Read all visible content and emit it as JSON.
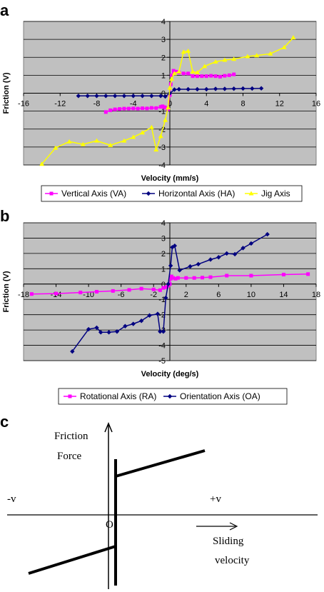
{
  "figure": {
    "panels": [
      {
        "label": "a"
      },
      {
        "label": "b"
      },
      {
        "label": "c"
      }
    ]
  },
  "chart_data": [
    {
      "type": "line",
      "panel": "a",
      "xlabel": "Velocity (mm/s)",
      "ylabel": "Friction (V)",
      "xlim": [
        -16,
        16
      ],
      "ylim": [
        -4,
        4
      ],
      "x_ticks": [
        "-16",
        "-12",
        "-8",
        "-4",
        "0",
        "4",
        "8",
        "12",
        "16"
      ],
      "x_tick_values": [
        -16,
        -12,
        -8,
        -4,
        0,
        4,
        8,
        12,
        16
      ],
      "y_ticks": [
        "4",
        "3",
        "2",
        "1",
        "0",
        "-1",
        "-2",
        "-3",
        "-4"
      ],
      "y_tick_values": [
        4,
        3,
        2,
        1,
        0,
        -1,
        -2,
        -3,
        -4
      ],
      "grid": true,
      "background": "#c0c0c0",
      "legend_position": "bottom",
      "series": [
        {
          "name": "Vertical Axis (VA)",
          "color": "#ff00ff",
          "marker": "square",
          "points": [
            [
              -7,
              -1.05
            ],
            [
              -6.5,
              -0.95
            ],
            [
              -6,
              -0.9
            ],
            [
              -5.5,
              -0.88
            ],
            [
              -5,
              -0.86
            ],
            [
              -4.5,
              -0.86
            ],
            [
              -4,
              -0.85
            ],
            [
              -3.5,
              -0.86
            ],
            [
              -3,
              -0.84
            ],
            [
              -2.5,
              -0.85
            ],
            [
              -2,
              -0.82
            ],
            [
              -1.5,
              -0.83
            ],
            [
              -1,
              -0.76
            ],
            [
              -0.8,
              -0.73
            ],
            [
              -0.6,
              -0.78
            ],
            [
              -0.4,
              -0.82
            ],
            [
              -0.2,
              -0.9
            ],
            [
              0,
              -0.1
            ],
            [
              0.1,
              0.5
            ],
            [
              0.2,
              1.0
            ],
            [
              0.4,
              1.25
            ],
            [
              0.7,
              1.2
            ],
            [
              1,
              1.15
            ],
            [
              1.5,
              1.1
            ],
            [
              2,
              1.1
            ],
            [
              2.5,
              0.95
            ],
            [
              3,
              0.95
            ],
            [
              3.5,
              0.95
            ],
            [
              4,
              0.95
            ],
            [
              4.5,
              0.97
            ],
            [
              5,
              0.95
            ],
            [
              5.5,
              0.92
            ],
            [
              6,
              0.97
            ],
            [
              6.5,
              1.0
            ],
            [
              7,
              1.05
            ]
          ]
        },
        {
          "name": "Horizontal Axis (HA)",
          "color": "#000080",
          "marker": "diamond",
          "points": [
            [
              -10,
              -0.15
            ],
            [
              -9,
              -0.15
            ],
            [
              -8,
              -0.15
            ],
            [
              -7,
              -0.15
            ],
            [
              -6,
              -0.15
            ],
            [
              -5,
              -0.15
            ],
            [
              -4,
              -0.15
            ],
            [
              -3,
              -0.15
            ],
            [
              -2,
              -0.15
            ],
            [
              -1,
              -0.15
            ],
            [
              -0.5,
              -0.18
            ],
            [
              0,
              0.0
            ],
            [
              0.5,
              0.2
            ],
            [
              1,
              0.22
            ],
            [
              2,
              0.22
            ],
            [
              3,
              0.22
            ],
            [
              4,
              0.22
            ],
            [
              5,
              0.24
            ],
            [
              6,
              0.24
            ],
            [
              7,
              0.25
            ],
            [
              8,
              0.26
            ],
            [
              9,
              0.26
            ],
            [
              10,
              0.27
            ]
          ]
        },
        {
          "name": "Jig Axis",
          "color": "#ffff00",
          "marker": "triangle",
          "points": [
            [
              -14,
              -3.95
            ],
            [
              -12.5,
              -3.05
            ],
            [
              -11,
              -2.7
            ],
            [
              -9.5,
              -2.85
            ],
            [
              -8,
              -2.65
            ],
            [
              -6.5,
              -2.9
            ],
            [
              -5,
              -2.65
            ],
            [
              -4,
              -2.45
            ],
            [
              -3,
              -2.2
            ],
            [
              -2,
              -1.9
            ],
            [
              -1.5,
              -3.15
            ],
            [
              -1,
              -2.4
            ],
            [
              -0.5,
              -1.5
            ],
            [
              -0.2,
              -0.8
            ],
            [
              0,
              0.3
            ],
            [
              0.2,
              0.8
            ],
            [
              0.5,
              1.1
            ],
            [
              1,
              1.2
            ],
            [
              1.5,
              2.3
            ],
            [
              2,
              2.35
            ],
            [
              2.5,
              1.2
            ],
            [
              3,
              1.15
            ],
            [
              3.8,
              1.5
            ],
            [
              5,
              1.75
            ],
            [
              6,
              1.85
            ],
            [
              7,
              1.9
            ],
            [
              8.5,
              2.05
            ],
            [
              9.5,
              2.1
            ],
            [
              11,
              2.2
            ],
            [
              12.5,
              2.55
            ],
            [
              13.5,
              3.1
            ]
          ]
        }
      ]
    },
    {
      "type": "line",
      "panel": "b",
      "xlabel": "Velocity (deg/s)",
      "ylabel": "Friction (V)",
      "xlim": [
        -18,
        18
      ],
      "ylim": [
        -5,
        4
      ],
      "x_ticks": [
        "-18",
        "-14",
        "-10",
        "-6",
        "-2",
        "2",
        "6",
        "10",
        "14",
        "18"
      ],
      "x_tick_values": [
        -18,
        -14,
        -10,
        -6,
        -2,
        2,
        6,
        10,
        14,
        18
      ],
      "y_ticks": [
        "4",
        "3",
        "2",
        "1",
        "0",
        "-1",
        "-2",
        "-3",
        "-4",
        "-5"
      ],
      "y_tick_values": [
        4,
        3,
        2,
        1,
        0,
        -1,
        -2,
        -3,
        -4,
        -5
      ],
      "grid": true,
      "background": "#c0c0c0",
      "legend_position": "bottom",
      "series": [
        {
          "name": "Rotational Axis (RA)",
          "color": "#ff00ff",
          "marker": "square",
          "points": [
            [
              -17,
              -0.65
            ],
            [
              -14,
              -0.62
            ],
            [
              -11,
              -0.55
            ],
            [
              -9,
              -0.5
            ],
            [
              -7,
              -0.45
            ],
            [
              -5,
              -0.38
            ],
            [
              -3.5,
              -0.3
            ],
            [
              -2,
              -0.35
            ],
            [
              -1.2,
              -0.4
            ],
            [
              -0.8,
              -0.25
            ],
            [
              -0.4,
              -0.2
            ],
            [
              -0.2,
              -0.1
            ],
            [
              0,
              0.0
            ],
            [
              0.1,
              0.35
            ],
            [
              0.2,
              0.5
            ],
            [
              0.4,
              0.4
            ],
            [
              0.7,
              0.35
            ],
            [
              1,
              0.4
            ],
            [
              2,
              0.4
            ],
            [
              3,
              0.4
            ],
            [
              4,
              0.42
            ],
            [
              5,
              0.45
            ],
            [
              7,
              0.55
            ],
            [
              10,
              0.55
            ],
            [
              14,
              0.62
            ],
            [
              17,
              0.65
            ]
          ]
        },
        {
          "name": "Orientation Axis (OA)",
          "color": "#000080",
          "marker": "diamond",
          "points": [
            [
              -12,
              -4.4
            ],
            [
              -10,
              -2.95
            ],
            [
              -9,
              -2.85
            ],
            [
              -8.5,
              -3.15
            ],
            [
              -7.5,
              -3.15
            ],
            [
              -6.5,
              -3.1
            ],
            [
              -5.5,
              -2.75
            ],
            [
              -4.5,
              -2.6
            ],
            [
              -3.5,
              -2.4
            ],
            [
              -2.5,
              -2.05
            ],
            [
              -1.5,
              -1.95
            ],
            [
              -1.2,
              -3.1
            ],
            [
              -0.8,
              -3.1
            ],
            [
              -0.5,
              -0.9
            ],
            [
              -0.2,
              0.0
            ],
            [
              0.1,
              1.2
            ],
            [
              0.3,
              2.4
            ],
            [
              0.6,
              2.5
            ],
            [
              1.2,
              0.9
            ],
            [
              2.5,
              1.15
            ],
            [
              3.5,
              1.3
            ],
            [
              5,
              1.6
            ],
            [
              6,
              1.75
            ],
            [
              7,
              2.0
            ],
            [
              8,
              1.95
            ],
            [
              9,
              2.35
            ],
            [
              10,
              2.65
            ],
            [
              12,
              3.25
            ]
          ]
        }
      ]
    }
  ],
  "schematic": {
    "y_axis_label_line1": "Friction",
    "y_axis_label_line2": "Force",
    "neg_label": "-v",
    "pos_label": "+v",
    "origin_label": "O",
    "x_axis_label_line1": "Sliding",
    "x_axis_label_line2": "velocity"
  }
}
